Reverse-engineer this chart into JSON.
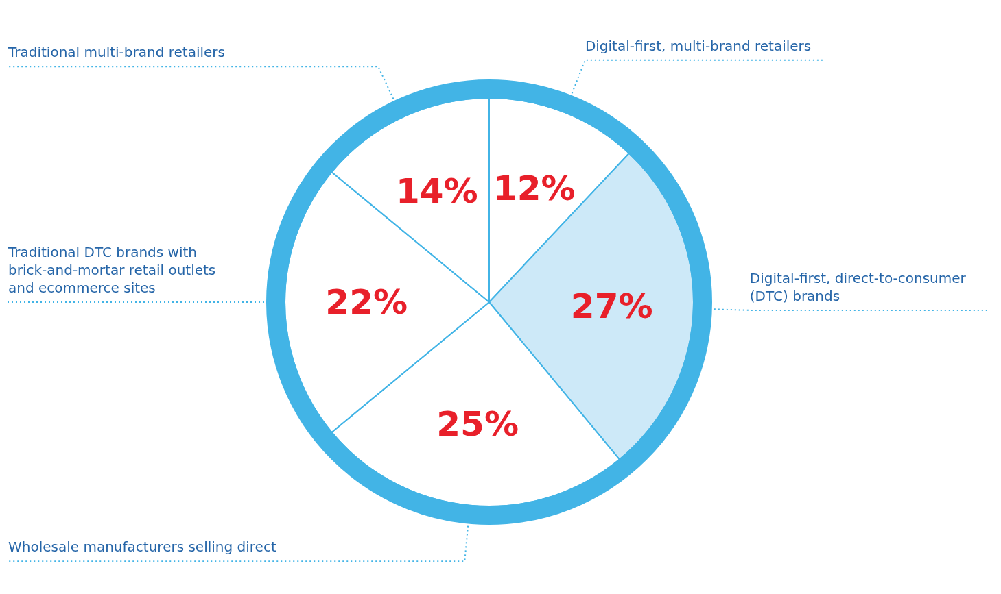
{
  "chart_data": {
    "type": "pie",
    "categories": [
      "Digital-first, multi-brand retailers",
      "Digital-first, direct-to-consumer (DTC) brands",
      "Wholesale manufacturers selling direct",
      "Traditional DTC brands with brick-and-mortar retail outlets and ecommerce sites",
      "Traditional multi-brand retailers"
    ],
    "values": [
      12,
      27,
      25,
      22,
      14
    ],
    "colors": [
      "#ffffff",
      "#cde9f8",
      "#ffffff",
      "#ffffff",
      "#ffffff"
    ],
    "value_labels": [
      "12%",
      "27%",
      "25%",
      "22%",
      "14%"
    ],
    "legend": false
  }
}
